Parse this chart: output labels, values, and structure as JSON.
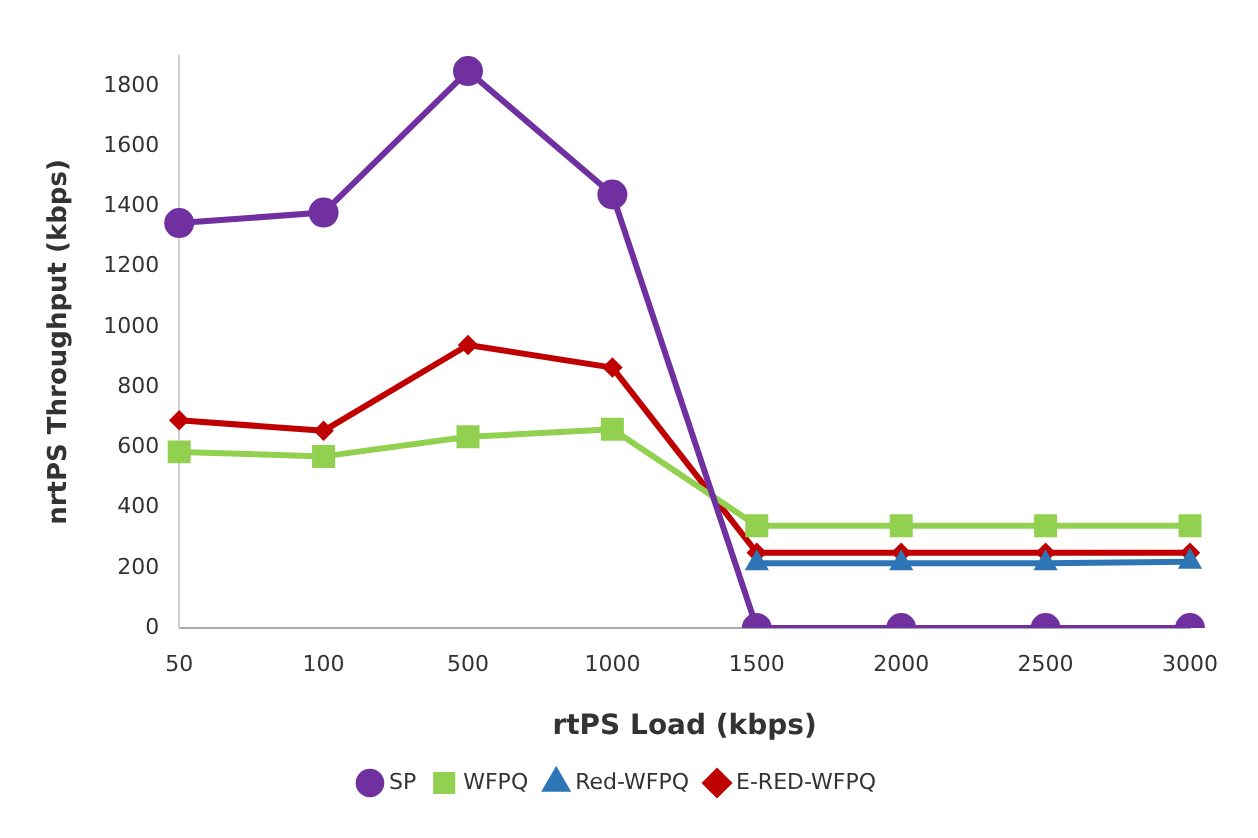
{
  "chart_data": {
    "type": "line",
    "xlabel": "rtPS Load (kbps)",
    "ylabel": "nrtPS Throughput (kbps)",
    "categories": [
      "50",
      "100",
      "500",
      "1000",
      "1500",
      "2000",
      "2500",
      "3000"
    ],
    "ylim": [
      0,
      1900
    ],
    "yticks": [
      0,
      200,
      400,
      600,
      800,
      1000,
      1200,
      1400,
      1600,
      1800
    ],
    "grid": false,
    "legend": "bottom",
    "series": [
      {
        "name": "SP",
        "color": "#7030a0",
        "marker": "circle",
        "values": [
          1345,
          1380,
          1850,
          1440,
          0,
          0,
          0,
          0
        ]
      },
      {
        "name": "WFPQ",
        "color": "#92d050",
        "marker": "square",
        "values": [
          585,
          570,
          635,
          660,
          340,
          340,
          340,
          340
        ]
      },
      {
        "name": "Red-WFPQ",
        "color": "#2e75b6",
        "marker": "triangle",
        "values": [
          null,
          null,
          null,
          null,
          215,
          215,
          215,
          220
        ]
      },
      {
        "name": "E-RED-WFPQ",
        "color": "#c00000",
        "marker": "diamond",
        "values": [
          690,
          655,
          940,
          865,
          250,
          250,
          250,
          250
        ]
      }
    ]
  }
}
